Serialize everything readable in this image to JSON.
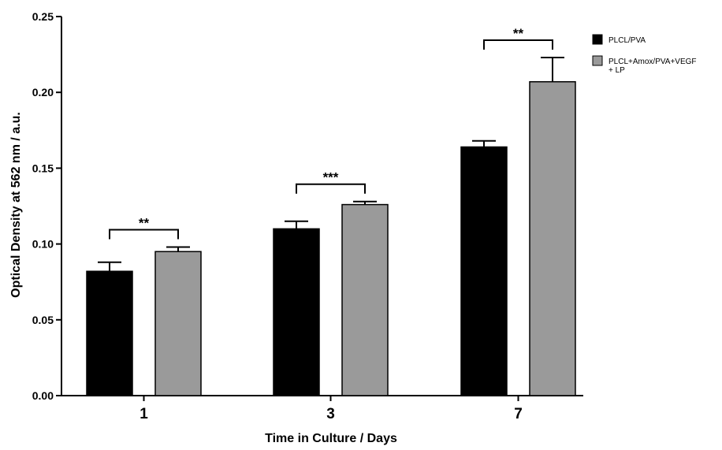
{
  "chart_data": {
    "type": "bar",
    "title": "",
    "xlabel": "Time in Culture / Days",
    "ylabel": "Optical Density at 562 nm / a.u.",
    "categories": [
      "1",
      "3",
      "7"
    ],
    "ylim": [
      0,
      0.25
    ],
    "yticks": [
      0.0,
      0.05,
      0.1,
      0.15,
      0.2,
      0.25
    ],
    "ytick_labels": [
      "0.00",
      "0.05",
      "0.10",
      "0.15",
      "0.20",
      "0.25"
    ],
    "grid": false,
    "legend_position": "top-right",
    "series": [
      {
        "name": "PLCL/PVA",
        "color": "#000000",
        "values": [
          0.082,
          0.11,
          0.164
        ],
        "errors": [
          0.006,
          0.005,
          0.004
        ]
      },
      {
        "name": "PLCL+Amox/PVA+VEGF + LP",
        "legend_lines": [
          "PLCL+Amox/PVA+VEGF",
          "+ LP"
        ],
        "color": "#9a9a9a",
        "values": [
          0.095,
          0.126,
          0.207
        ],
        "errors": [
          0.003,
          0.002,
          0.016
        ]
      }
    ],
    "significance": [
      {
        "category_index": 0,
        "label": "**"
      },
      {
        "category_index": 1,
        "label": "***"
      },
      {
        "category_index": 2,
        "label": "**"
      }
    ]
  }
}
